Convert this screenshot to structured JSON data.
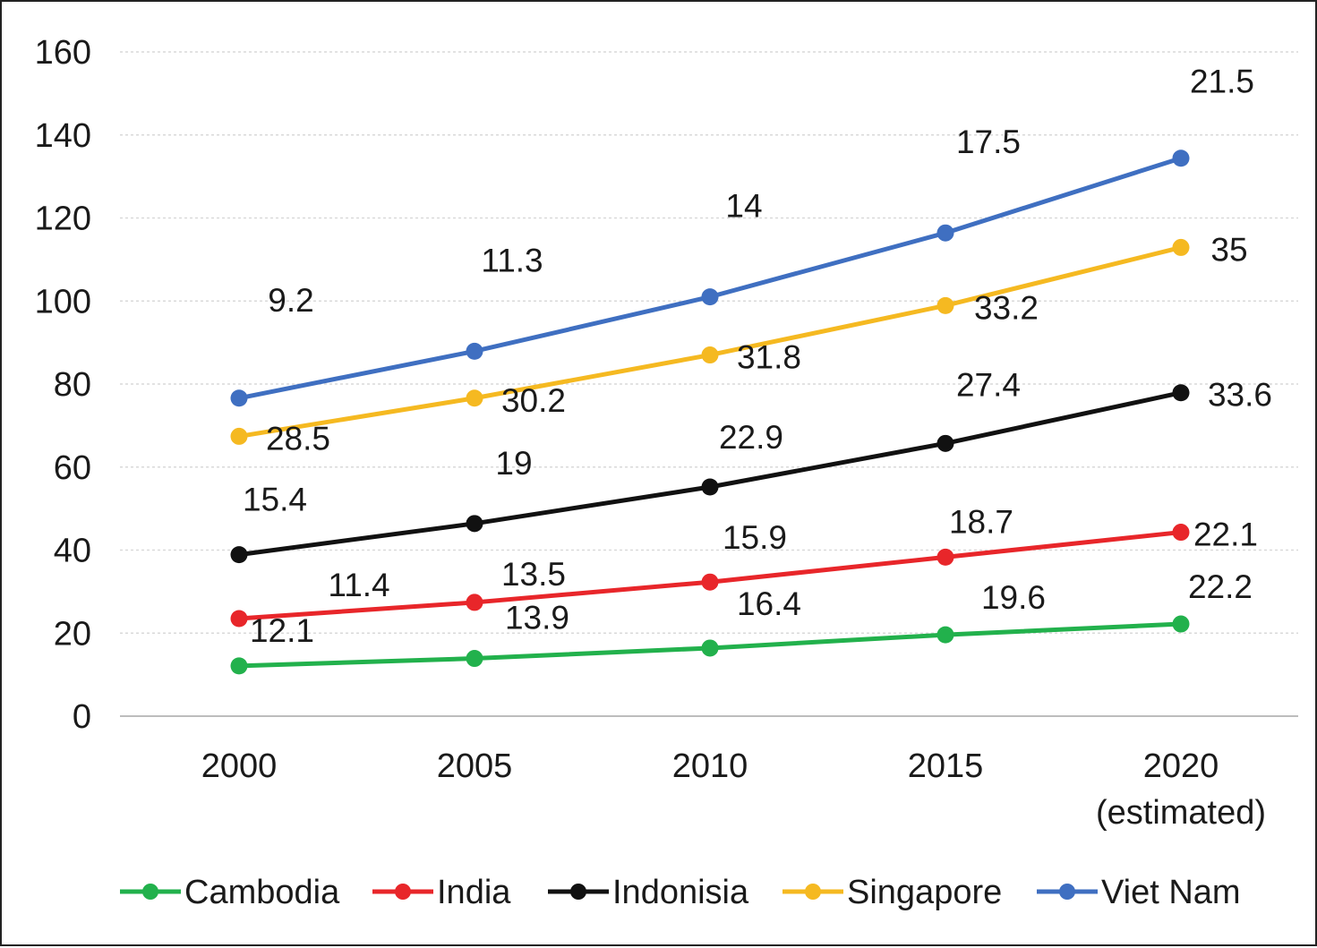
{
  "chart_data": {
    "type": "line",
    "categories": [
      "2000",
      "2005",
      "2010",
      "2015",
      "2020"
    ],
    "category_sublabels": [
      "",
      "",
      "",
      "",
      "(estimated)"
    ],
    "ylim": [
      0,
      160
    ],
    "yticks": [
      0,
      20,
      40,
      60,
      80,
      100,
      120,
      140,
      160
    ],
    "grid": true,
    "legend_position": "bottom",
    "series": [
      {
        "name": "Cambodia",
        "color": "#22b14c",
        "values": [
          12.1,
          13.9,
          16.4,
          19.6,
          22.2
        ],
        "labels": [
          "12.1",
          "13.9",
          "16.4",
          "19.6",
          "22.2"
        ]
      },
      {
        "name": "India",
        "color": "#e8262a",
        "values": [
          23.5,
          27.4,
          32.3,
          38.3,
          44.3
        ],
        "labels": [
          "11.4",
          "13.5",
          "15.9",
          "18.7",
          "22.1"
        ]
      },
      {
        "name": "Indonisia",
        "color": "#111111",
        "values": [
          38.9,
          46.4,
          55.2,
          65.7,
          77.9
        ],
        "labels": [
          "15.4",
          "19",
          "22.9",
          "27.4",
          "33.6"
        ]
      },
      {
        "name": "Singapore",
        "color": "#f5b921",
        "values": [
          67.4,
          76.6,
          87.0,
          98.9,
          112.9
        ],
        "labels": [
          "28.5",
          "30.2",
          "31.8",
          "33.2",
          "35"
        ]
      },
      {
        "name": "Viet Nam",
        "color": "#3f6fc1",
        "values": [
          76.6,
          87.9,
          101.0,
          116.4,
          134.4
        ],
        "labels": [
          "9.2",
          "11.3",
          "14",
          "17.5",
          "21.5"
        ]
      }
    ]
  }
}
